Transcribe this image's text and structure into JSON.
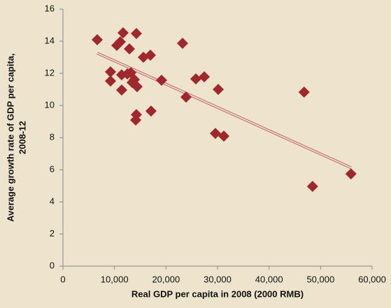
{
  "chart_data": {
    "type": "scatter",
    "x_label": "Real GDP per capita in 2008 (2000 RMB)",
    "y_label": [
      "Average growth rate of GDP per capita,",
      "2008-12"
    ],
    "series": [
      {
        "color": "#a0282c",
        "x": [
          6650,
          9230,
          9230,
          10450,
          11130,
          11400,
          11400,
          11670,
          12490,
          12900,
          13170,
          13440,
          13850,
          14250,
          14390,
          14250,
          14120,
          15610,
          16970,
          17100,
          19140,
          23210,
          23890,
          25790,
          27420,
          30140,
          29590,
          31220,
          46800,
          48440,
          55900
        ],
        "values": [
          14.09,
          12.09,
          11.52,
          13.74,
          13.96,
          11.91,
          10.96,
          14.52,
          11.96,
          13.52,
          12.04,
          11.43,
          11.61,
          14.48,
          11.17,
          9.43,
          9.09,
          13.0,
          13.13,
          9.65,
          11.57,
          13.87,
          10.52,
          11.65,
          11.78,
          11.0,
          8.26,
          8.09,
          10.83,
          4.96,
          5.74
        ]
      }
    ],
    "trendline": {
      "color": "#c8797b",
      "x": [
        6650,
        55900
      ],
      "values": [
        13.26,
        6.13
      ]
    },
    "xlim": [
      0,
      60000
    ],
    "xticks": [
      0,
      {
        "value": 10000,
        "label": "10,000"
      },
      {
        "value": 20000,
        "label": "20,000"
      },
      {
        "value": 30000,
        "label": "30,000"
      },
      {
        "value": 40000,
        "label": "40,000"
      },
      {
        "value": 50000,
        "label": "50,000"
      },
      {
        "value": 60000,
        "label": "60,000"
      }
    ],
    "ylim": [
      0,
      16
    ],
    "yticks": [
      0,
      2,
      4,
      6,
      8,
      10,
      12,
      14,
      16
    ]
  }
}
